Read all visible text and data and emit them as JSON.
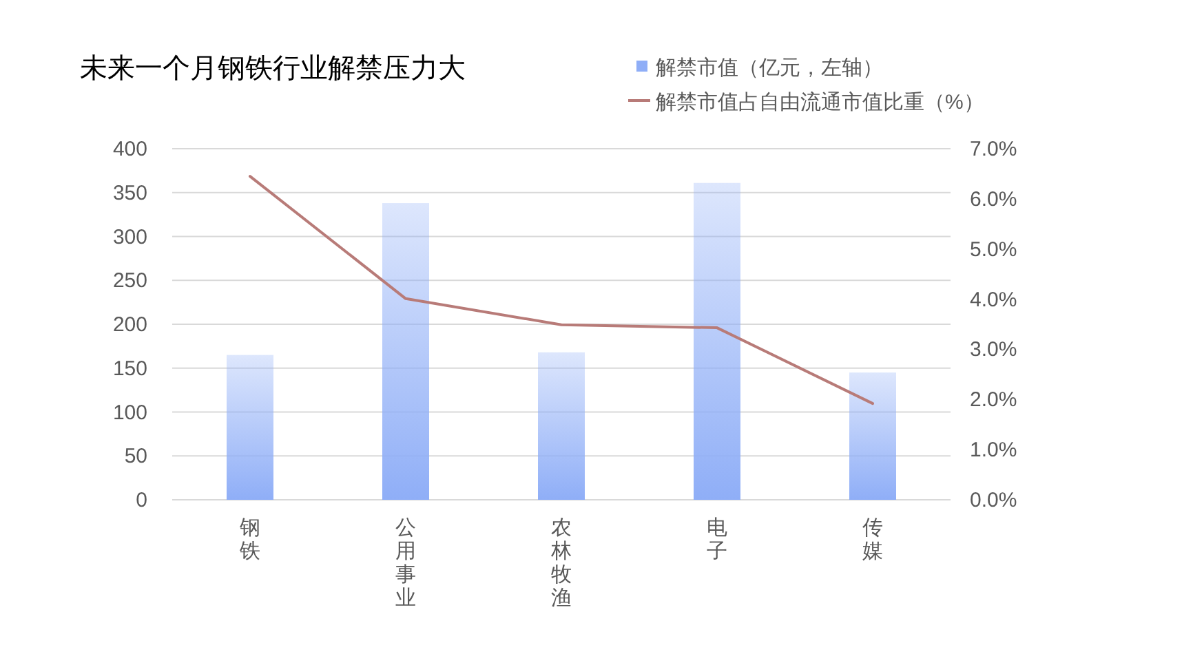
{
  "chart_data": {
    "type": "bar",
    "title": "未来一个月钢铁行业解禁压力大",
    "categories": [
      "钢铁",
      "公用事业",
      "农林牧渔",
      "电子",
      "传媒"
    ],
    "series": [
      {
        "name": "解禁市值（亿元，左轴）",
        "color": "#8faef7",
        "values": [
          165,
          338,
          168,
          361,
          145
        ]
      },
      {
        "name": "解禁市值占自由流通市值比重（%）",
        "type": "line",
        "axis": "y2",
        "color": "#b87b78",
        "values": [
          6.45,
          4.01,
          3.49,
          3.43,
          1.92
        ]
      }
    ],
    "ylim": [
      0,
      400
    ],
    "yticks": [
      0,
      50,
      100,
      150,
      200,
      250,
      300,
      350,
      400
    ],
    "y2lim": [
      0,
      7
    ],
    "y2ticks": [
      {
        "value": 0,
        "label": "0.0%"
      },
      {
        "value": 1,
        "label": "1.0%"
      },
      {
        "value": 2,
        "label": "2.0%"
      },
      {
        "value": 3,
        "label": "3.0%"
      },
      {
        "value": 4,
        "label": "4.0%"
      },
      {
        "value": 5,
        "label": "5.0%"
      },
      {
        "value": 6,
        "label": "6.0%"
      },
      {
        "value": 7,
        "label": "7.0%"
      }
    ],
    "grid": "y",
    "legend": "top right"
  }
}
